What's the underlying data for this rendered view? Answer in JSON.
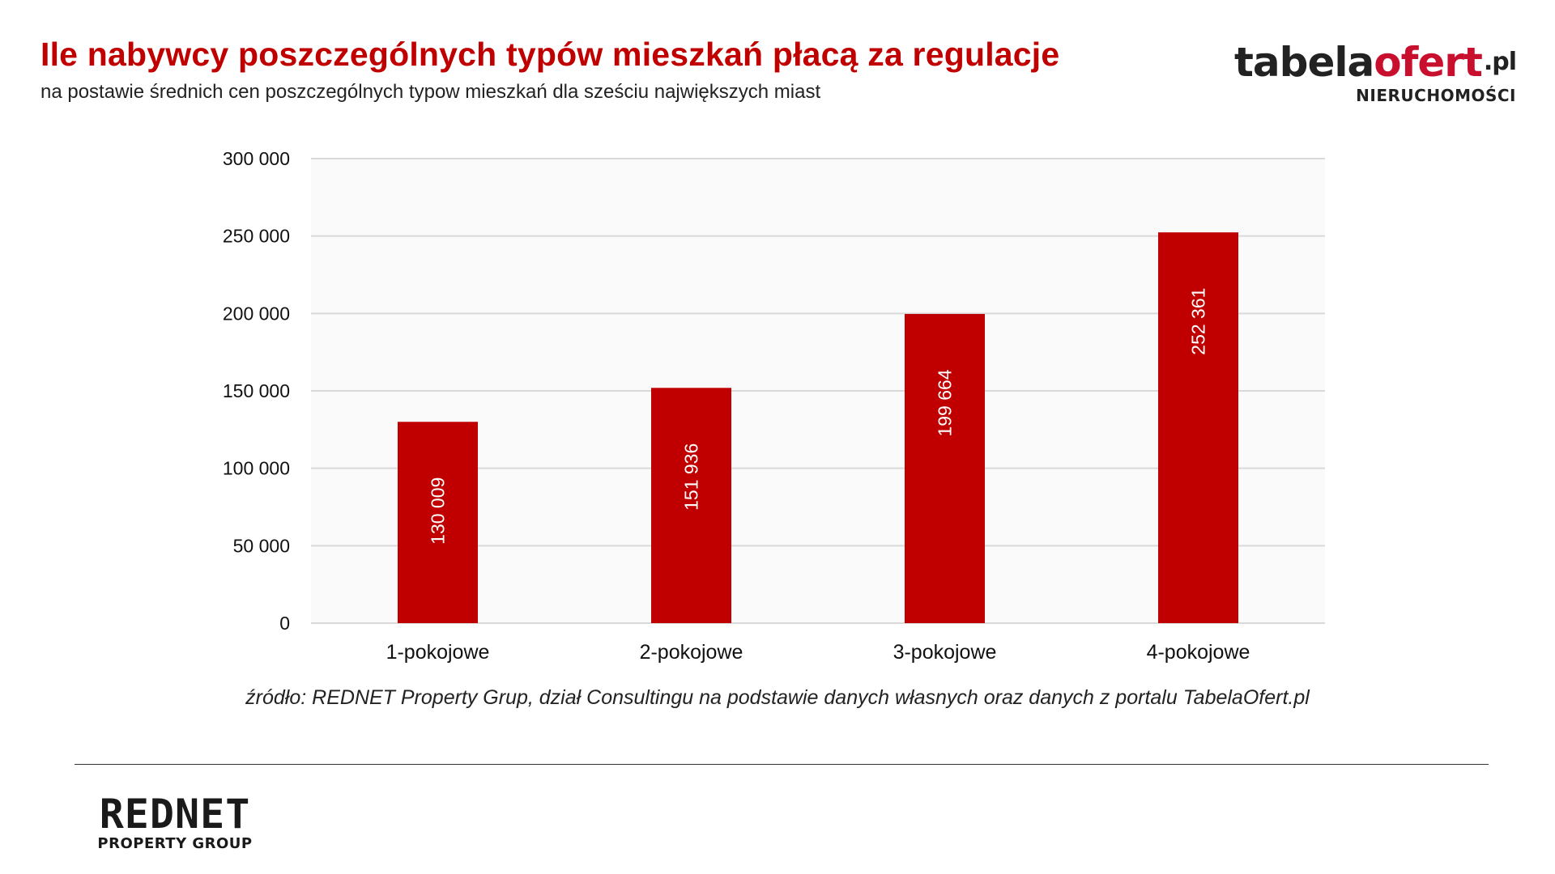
{
  "header": {
    "title": "Ile nabywcy poszczególnych typów mieszkań płacą za regulacje",
    "subtitle": "na postawie średnich cen poszczególnych typow mieszkań dla sześciu największych miast"
  },
  "logos": {
    "tabela_dark": "tabela",
    "tabela_red": "ofert",
    "tabela_tld": ".pl",
    "tabela_sub": "NIERUCHOMOŚCI",
    "rednet_main": "REDNET",
    "rednet_sub": "PROPERTY GROUP"
  },
  "chart_data": {
    "type": "bar",
    "categories": [
      "1-pokojowe",
      "2-pokojowe",
      "3-pokojowe",
      "4-pokojowe"
    ],
    "values": [
      130009,
      151936,
      199664,
      252361
    ],
    "value_labels": [
      "130 009",
      "151 936",
      "199 664",
      "252 361"
    ],
    "ylim": [
      0,
      300000
    ],
    "yticks": [
      0,
      50000,
      100000,
      150000,
      200000,
      250000,
      300000
    ],
    "ytick_labels": [
      "0",
      "50 000",
      "100 000",
      "150 000",
      "200 000",
      "250 000",
      "300 000"
    ],
    "grid": true,
    "legend": "none",
    "bar_color": "#c00000",
    "plot_background": "#fafafa",
    "grid_color": "#d9d9d9"
  },
  "footer": {
    "source": "źródło: REDNET Property Grup, dział Consultingu na podstawie danych własnych oraz danych z portalu TabelaOfert.pl"
  }
}
